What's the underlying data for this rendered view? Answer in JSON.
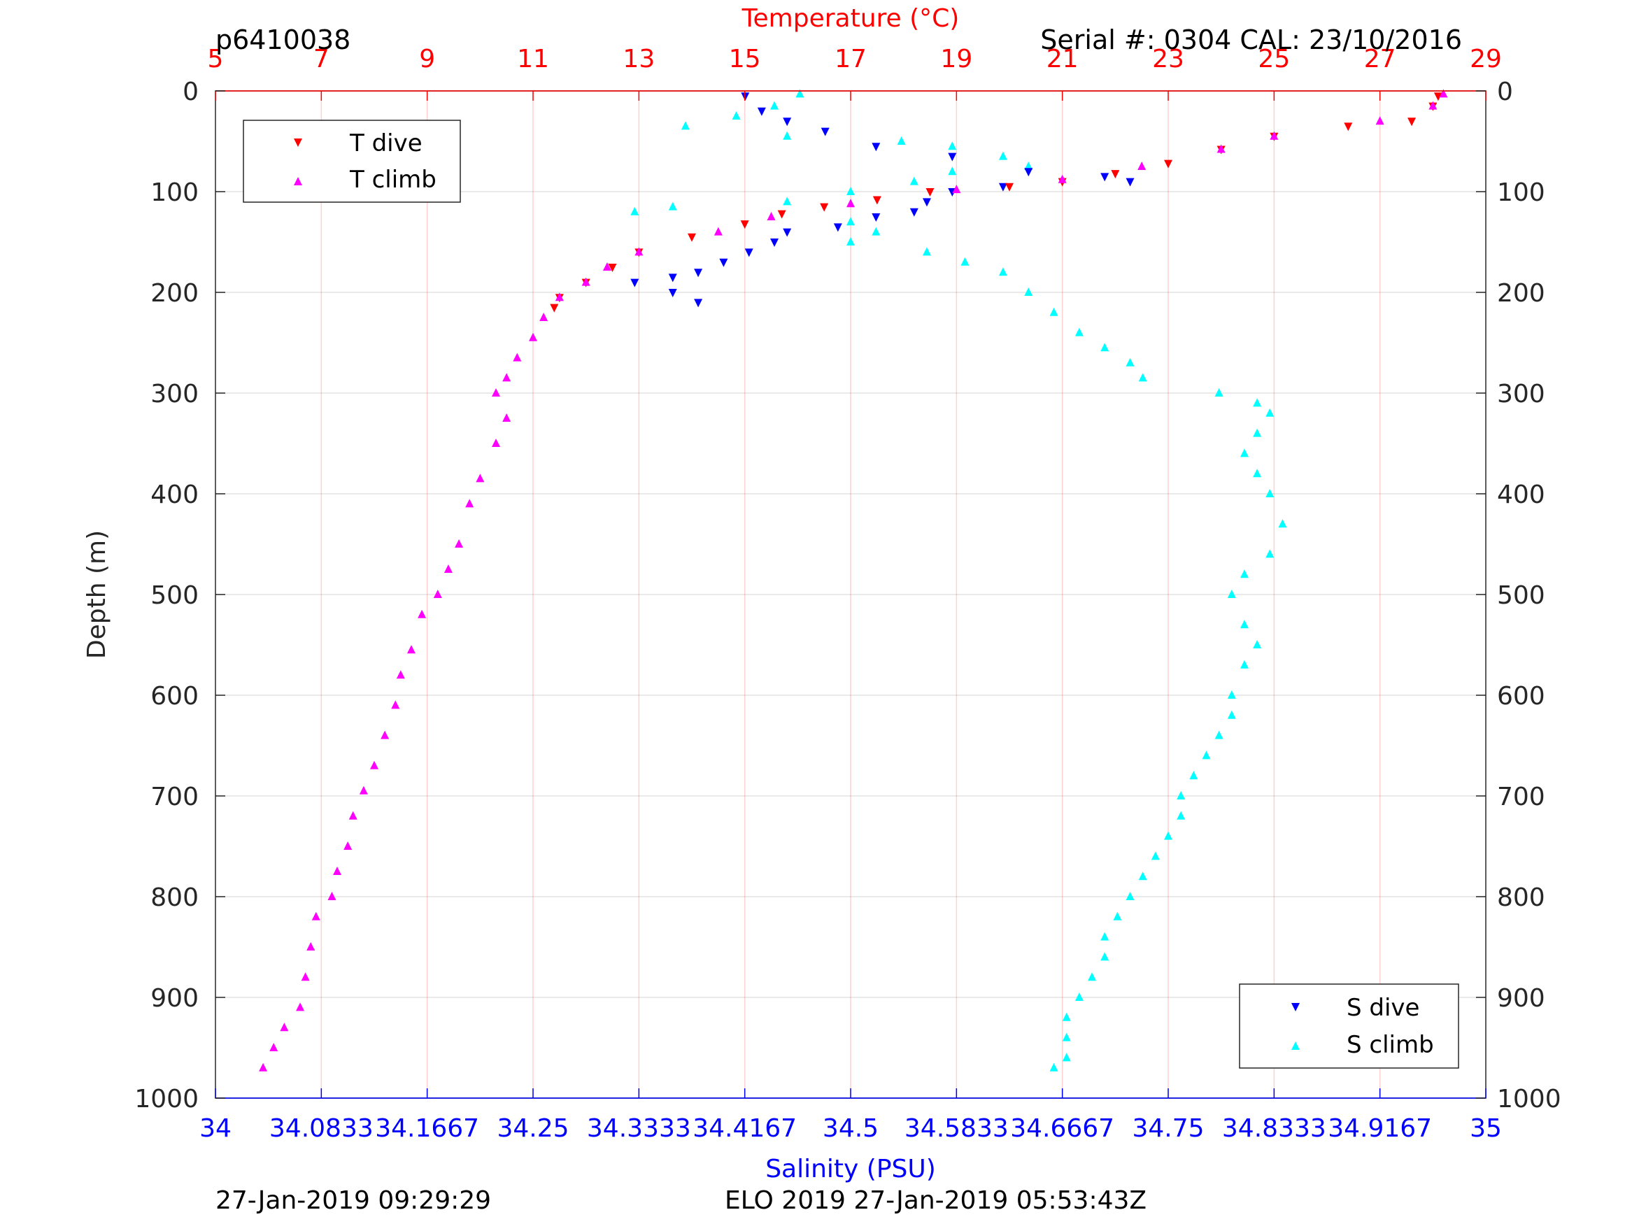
{
  "header": {
    "profile_id": "p6410038",
    "serial_cal": "Serial #: 0304  CAL: 23/10/2016"
  },
  "footer": {
    "left_timestamp": "27-Jan-2019 09:29:29",
    "center_mission": "ELO 2019 27-Jan-2019 05:53:43Z"
  },
  "chart_data": {
    "type": "scatter",
    "title": "",
    "y_axis": {
      "label": "Depth (m)",
      "range": [
        0,
        1000
      ],
      "inverted": true,
      "ticks": [
        "0",
        "100",
        "200",
        "300",
        "400",
        "500",
        "600",
        "700",
        "800",
        "900",
        "1000"
      ]
    },
    "x_axis_top": {
      "label": "Temperature (°C)",
      "range": [
        5,
        29
      ],
      "color": "#ff0000",
      "ticks": [
        "5",
        "7",
        "9",
        "11",
        "13",
        "15",
        "17",
        "19",
        "21",
        "23",
        "25",
        "27",
        "29"
      ]
    },
    "x_axis_bottom": {
      "label": "Salinity (PSU)",
      "range": [
        34,
        35
      ],
      "color": "#0000ff",
      "ticks": [
        "34",
        "34.0833",
        "34.1667",
        "34.25",
        "34.3333",
        "34.4167",
        "34.5",
        "34.5833",
        "34.6667",
        "34.75",
        "34.8333",
        "34.9167",
        "35"
      ]
    },
    "grid": true,
    "legends": [
      {
        "position": "top-left",
        "entries": [
          "T dive",
          "T climb"
        ]
      },
      {
        "position": "bottom-right",
        "entries": [
          "S dive",
          "S climb"
        ]
      }
    ],
    "series": [
      {
        "name": "T dive",
        "axis": "temperature",
        "marker": "triangle-down",
        "color": "#ff0000",
        "points": [
          [
            28.1,
            5
          ],
          [
            28.0,
            15
          ],
          [
            27.6,
            30
          ],
          [
            26.4,
            35
          ],
          [
            25.0,
            45
          ],
          [
            24.0,
            58
          ],
          [
            23.0,
            72
          ],
          [
            22.0,
            82
          ],
          [
            21.0,
            90
          ],
          [
            20.0,
            95
          ],
          [
            18.5,
            100
          ],
          [
            17.5,
            108
          ],
          [
            16.5,
            115
          ],
          [
            15.7,
            122
          ],
          [
            15.0,
            132
          ],
          [
            14.0,
            145
          ],
          [
            13.0,
            160
          ],
          [
            12.5,
            175
          ],
          [
            12.0,
            190
          ],
          [
            11.5,
            205
          ],
          [
            11.4,
            215
          ]
        ]
      },
      {
        "name": "T climb",
        "axis": "temperature",
        "marker": "triangle-up",
        "color": "#ff00ff",
        "points": [
          [
            28.2,
            3
          ],
          [
            28.0,
            15
          ],
          [
            27.0,
            30
          ],
          [
            25.0,
            45
          ],
          [
            24.0,
            58
          ],
          [
            22.5,
            75
          ],
          [
            21.0,
            88
          ],
          [
            19.0,
            98
          ],
          [
            17.0,
            112
          ],
          [
            15.5,
            125
          ],
          [
            14.5,
            140
          ],
          [
            13.0,
            160
          ],
          [
            12.4,
            175
          ],
          [
            12.0,
            190
          ],
          [
            11.5,
            205
          ],
          [
            11.2,
            225
          ],
          [
            11.0,
            245
          ],
          [
            10.7,
            265
          ],
          [
            10.5,
            285
          ],
          [
            10.3,
            300
          ],
          [
            10.5,
            325
          ],
          [
            10.3,
            350
          ],
          [
            10.0,
            385
          ],
          [
            9.8,
            410
          ],
          [
            9.6,
            450
          ],
          [
            9.4,
            475
          ],
          [
            9.2,
            500
          ],
          [
            8.9,
            520
          ],
          [
            8.7,
            555
          ],
          [
            8.5,
            580
          ],
          [
            8.4,
            610
          ],
          [
            8.2,
            640
          ],
          [
            8.0,
            670
          ],
          [
            7.8,
            695
          ],
          [
            7.6,
            720
          ],
          [
            7.5,
            750
          ],
          [
            7.3,
            775
          ],
          [
            7.2,
            800
          ],
          [
            6.9,
            820
          ],
          [
            6.8,
            850
          ],
          [
            6.7,
            880
          ],
          [
            6.6,
            910
          ],
          [
            6.3,
            930
          ],
          [
            6.1,
            950
          ],
          [
            5.9,
            970
          ]
        ]
      },
      {
        "name": "S dive",
        "axis": "salinity",
        "marker": "triangle-down",
        "color": "#0000ff",
        "points": [
          [
            34.417,
            5
          ],
          [
            34.43,
            20
          ],
          [
            34.45,
            30
          ],
          [
            34.48,
            40
          ],
          [
            34.52,
            55
          ],
          [
            34.58,
            65
          ],
          [
            34.64,
            80
          ],
          [
            34.7,
            85
          ],
          [
            34.72,
            90
          ],
          [
            34.62,
            95
          ],
          [
            34.58,
            100
          ],
          [
            34.56,
            110
          ],
          [
            34.55,
            120
          ],
          [
            34.52,
            125
          ],
          [
            34.49,
            135
          ],
          [
            34.45,
            140
          ],
          [
            34.44,
            150
          ],
          [
            34.42,
            160
          ],
          [
            34.4,
            170
          ],
          [
            34.38,
            180
          ],
          [
            34.36,
            185
          ],
          [
            34.33,
            190
          ],
          [
            34.36,
            200
          ],
          [
            34.38,
            210
          ]
        ]
      },
      {
        "name": "S climb",
        "axis": "salinity",
        "marker": "triangle-up",
        "color": "#00ffff",
        "points": [
          [
            34.46,
            3
          ],
          [
            34.44,
            15
          ],
          [
            34.41,
            25
          ],
          [
            34.37,
            35
          ],
          [
            34.45,
            45
          ],
          [
            34.54,
            50
          ],
          [
            34.58,
            55
          ],
          [
            34.62,
            65
          ],
          [
            34.64,
            75
          ],
          [
            34.58,
            80
          ],
          [
            34.55,
            90
          ],
          [
            34.5,
            100
          ],
          [
            34.45,
            110
          ],
          [
            34.36,
            115
          ],
          [
            34.33,
            120
          ],
          [
            34.5,
            130
          ],
          [
            34.52,
            140
          ],
          [
            34.5,
            150
          ],
          [
            34.56,
            160
          ],
          [
            34.59,
            170
          ],
          [
            34.62,
            180
          ],
          [
            34.64,
            200
          ],
          [
            34.66,
            220
          ],
          [
            34.68,
            240
          ],
          [
            34.7,
            255
          ],
          [
            34.72,
            270
          ],
          [
            34.73,
            285
          ],
          [
            34.79,
            300
          ],
          [
            34.82,
            310
          ],
          [
            34.83,
            320
          ],
          [
            34.82,
            340
          ],
          [
            34.81,
            360
          ],
          [
            34.82,
            380
          ],
          [
            34.83,
            400
          ],
          [
            34.84,
            430
          ],
          [
            34.83,
            460
          ],
          [
            34.81,
            480
          ],
          [
            34.8,
            500
          ],
          [
            34.81,
            530
          ],
          [
            34.82,
            550
          ],
          [
            34.81,
            570
          ],
          [
            34.8,
            600
          ],
          [
            34.8,
            620
          ],
          [
            34.79,
            640
          ],
          [
            34.78,
            660
          ],
          [
            34.77,
            680
          ],
          [
            34.76,
            700
          ],
          [
            34.76,
            720
          ],
          [
            34.75,
            740
          ],
          [
            34.74,
            760
          ],
          [
            34.73,
            780
          ],
          [
            34.72,
            800
          ],
          [
            34.71,
            820
          ],
          [
            34.7,
            840
          ],
          [
            34.7,
            860
          ],
          [
            34.69,
            880
          ],
          [
            34.68,
            900
          ],
          [
            34.67,
            920
          ],
          [
            34.67,
            940
          ],
          [
            34.67,
            960
          ],
          [
            34.66,
            970
          ]
        ]
      }
    ]
  }
}
